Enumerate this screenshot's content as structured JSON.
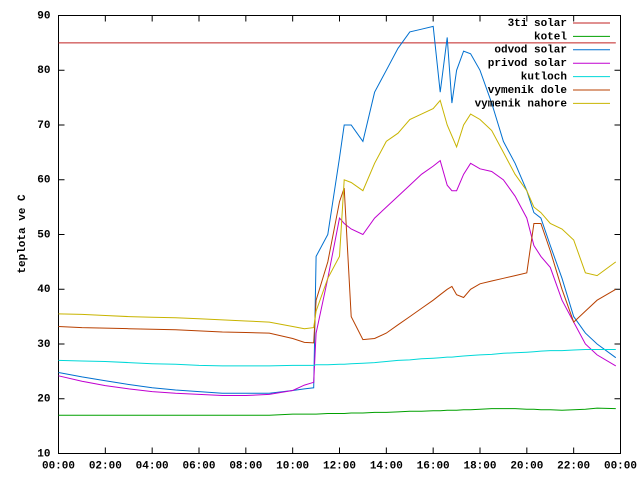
{
  "chart_data": {
    "type": "line",
    "y_label": "teplota ve C",
    "xlim": [
      0,
      24
    ],
    "ylim": [
      10,
      90
    ],
    "xticks": [
      {
        "value": 0,
        "label": "00:00"
      },
      {
        "value": 2,
        "label": "02:00"
      },
      {
        "value": 4,
        "label": "04:00"
      },
      {
        "value": 6,
        "label": "06:00"
      },
      {
        "value": 8,
        "label": "08:00"
      },
      {
        "value": 10,
        "label": "10:00"
      },
      {
        "value": 12,
        "label": "12:00"
      },
      {
        "value": 14,
        "label": "14:00"
      },
      {
        "value": 16,
        "label": "16:00"
      },
      {
        "value": 18,
        "label": "18:00"
      },
      {
        "value": 20,
        "label": "20:00"
      },
      {
        "value": 22,
        "label": "22:00"
      },
      {
        "value": 24,
        "label": "00:00"
      }
    ],
    "yticks": [
      10,
      20,
      30,
      40,
      50,
      60,
      70,
      80,
      90
    ],
    "legend": "top-right",
    "x": [
      0,
      1,
      2,
      3,
      4,
      5,
      6,
      7,
      8,
      9,
      10,
      10.5,
      10.9,
      11,
      11.5,
      12,
      12.2,
      12.5,
      13,
      13.5,
      14,
      14.5,
      15,
      15.5,
      16,
      16.3,
      16.6,
      16.8,
      17,
      17.3,
      17.6,
      18,
      18.5,
      19,
      19.5,
      20,
      20.3,
      20.6,
      21,
      21.5,
      22,
      22.5,
      23,
      23.8
    ],
    "series": [
      {
        "name": "3ti solar",
        "color": "#c02020",
        "values": [
          85,
          85,
          85,
          85,
          85,
          85,
          85,
          85,
          85,
          85,
          85,
          85,
          85,
          85,
          85,
          85,
          85,
          85,
          85,
          85,
          85,
          85,
          85,
          85,
          85,
          85,
          85,
          85,
          85,
          85,
          85,
          85,
          85,
          85,
          85,
          85,
          85,
          85,
          85,
          85,
          85,
          85,
          85,
          85
        ]
      },
      {
        "name": "kotel",
        "color": "#00a000",
        "values": [
          17,
          17,
          17,
          17,
          17,
          17,
          17,
          17,
          17,
          17,
          17.2,
          17.2,
          17.2,
          17.2,
          17.3,
          17.3,
          17.3,
          17.4,
          17.4,
          17.5,
          17.5,
          17.6,
          17.7,
          17.7,
          17.8,
          17.8,
          17.9,
          17.9,
          17.9,
          18,
          18,
          18.1,
          18.2,
          18.2,
          18.2,
          18.1,
          18.1,
          18,
          18,
          17.9,
          18,
          18.1,
          18.3,
          18.2
        ]
      },
      {
        "name": "odvod solar",
        "color": "#0070d0",
        "values": [
          24.8,
          24,
          23.3,
          22.6,
          22,
          21.6,
          21.3,
          21,
          21,
          21,
          21.5,
          21.8,
          22,
          46,
          50,
          64,
          70,
          70,
          67,
          76,
          80,
          84,
          87,
          87.5,
          88,
          76,
          86,
          74,
          80,
          83.5,
          83,
          80,
          74,
          67,
          63,
          58,
          54,
          53,
          48,
          42,
          35,
          32,
          30,
          27.5
        ]
      },
      {
        "name": "privod solar",
        "color": "#c000d0",
        "values": [
          24.2,
          23.2,
          22.4,
          21.8,
          21.3,
          21,
          20.8,
          20.6,
          20.6,
          20.8,
          21.5,
          22.5,
          23,
          32,
          42,
          53,
          52,
          51,
          50,
          53,
          55,
          57,
          59,
          61,
          62.5,
          63.5,
          59,
          58,
          58,
          61,
          63,
          62,
          61.5,
          60,
          57,
          53,
          48,
          46,
          44,
          38,
          34,
          30,
          28,
          26
        ]
      },
      {
        "name": "kutloch",
        "color": "#00d8d8",
        "values": [
          27,
          26.9,
          26.8,
          26.6,
          26.4,
          26.3,
          26.1,
          26,
          26,
          26,
          26.1,
          26.1,
          26.1,
          26.2,
          26.2,
          26.3,
          26.3,
          26.4,
          26.5,
          26.6,
          26.8,
          27,
          27.1,
          27.3,
          27.4,
          27.5,
          27.6,
          27.6,
          27.7,
          27.8,
          27.9,
          28,
          28.1,
          28.3,
          28.4,
          28.5,
          28.6,
          28.7,
          28.8,
          28.8,
          28.9,
          29,
          29,
          29
        ]
      },
      {
        "name": "vymenik dole",
        "color": "#b84000",
        "values": [
          33.2,
          33,
          32.9,
          32.8,
          32.7,
          32.6,
          32.4,
          32.2,
          32.1,
          32,
          31,
          30.3,
          30.2,
          38,
          45,
          56,
          58.5,
          35,
          30.8,
          31,
          32,
          33.5,
          35,
          36.5,
          38,
          39,
          40,
          40.5,
          39,
          38.5,
          40,
          41,
          41.5,
          42,
          42.5,
          43,
          52,
          52,
          47,
          40,
          34,
          36,
          38,
          40
        ]
      },
      {
        "name": "vymenik nahore",
        "color": "#c8b400",
        "values": [
          35.5,
          35.4,
          35.2,
          35,
          34.9,
          34.8,
          34.6,
          34.4,
          34.2,
          34,
          33.2,
          32.8,
          33,
          36,
          42,
          46,
          60,
          59.5,
          58,
          63,
          67,
          68.5,
          71,
          72,
          73,
          74.5,
          70,
          68,
          66,
          70,
          72,
          71,
          69,
          65,
          61,
          58,
          55,
          54,
          52,
          51,
          49,
          43,
          42.5,
          45
        ]
      }
    ]
  }
}
